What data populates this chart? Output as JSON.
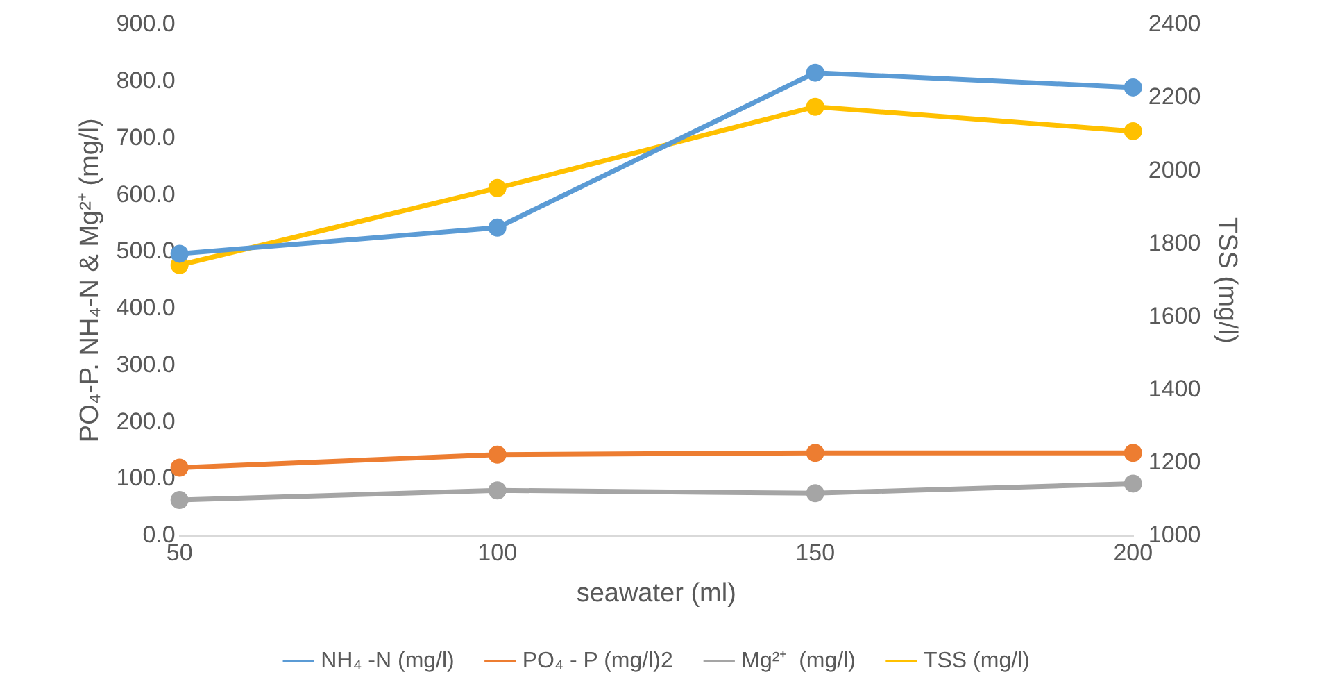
{
  "chart_data": {
    "type": "line",
    "xlabel": "seawater (ml)",
    "ylabel": "PO₄-P. NH₄-N & Mg²⁺ (mg/l)",
    "y2label": "TSS (mg/l)",
    "categories": [
      "50",
      "100",
      "150",
      "200"
    ],
    "series": [
      {
        "name": "NH₄ -N (mg/l)",
        "color": "#5b9bd5",
        "values": [
          497,
          543,
          816,
          790
        ]
      },
      {
        "name": "PO₄ - P (mg/l)2",
        "color": "#ed7d31",
        "values": [
          120,
          143,
          146,
          146
        ]
      },
      {
        "name": "Mg²⁺  (mg/l)",
        "color": "#a5a5a5",
        "values": [
          63,
          80,
          75,
          92
        ]
      },
      {
        "name": "TSS (mg/l)",
        "color": "#ffc000",
        "axis": "y2",
        "values": [
          1742,
          1953,
          2176,
          2109
        ]
      }
    ],
    "ylim": [
      0,
      900
    ],
    "yticks": [
      {
        "value": 0,
        "label": "0.0"
      },
      {
        "value": 100,
        "label": "100.0"
      },
      {
        "value": 200,
        "label": "200.0"
      },
      {
        "value": 300,
        "label": "300.0"
      },
      {
        "value": 400,
        "label": "400.0"
      },
      {
        "value": 500,
        "label": "500.0"
      },
      {
        "value": 600,
        "label": "600.0"
      },
      {
        "value": 700,
        "label": "700.0"
      },
      {
        "value": 800,
        "label": "800.0"
      },
      {
        "value": 900,
        "label": "900.0"
      }
    ],
    "y2lim": [
      1000,
      2400
    ],
    "y2ticks": [
      1000,
      1200,
      1400,
      1600,
      1800,
      2000,
      2200,
      2400
    ],
    "grid": false,
    "legend": "bottom",
    "marker": "circle",
    "line_style": "solid"
  }
}
